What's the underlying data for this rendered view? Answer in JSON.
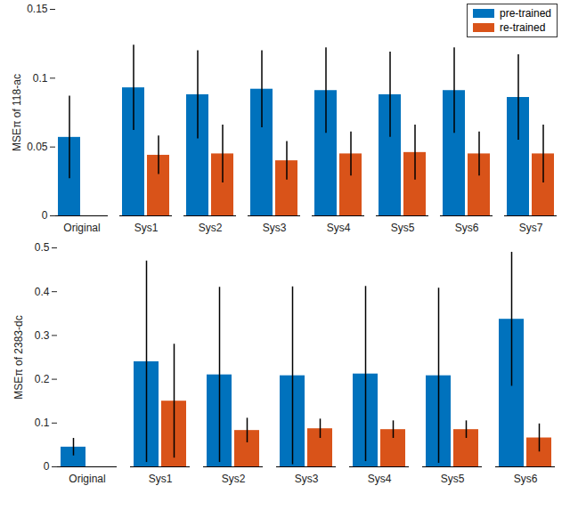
{
  "chart_data": [
    {
      "type": "bar",
      "y_label": "MSEπ of 118-ac",
      "categories": [
        "Original",
        "Sys1",
        "Sys2",
        "Sys3",
        "Sys4",
        "Sys5",
        "Sys6",
        "Sys7"
      ],
      "series": [
        {
          "name": "pre-trained",
          "color": "#0072BD",
          "values": [
            0.057,
            0.093,
            0.088,
            0.092,
            0.091,
            0.088,
            0.091,
            0.086
          ],
          "errors": [
            0.03,
            0.031,
            0.032,
            0.028,
            0.031,
            0.031,
            0.031,
            0.031
          ]
        },
        {
          "name": "re-trained",
          "color": "#D95319",
          "values": [
            null,
            0.044,
            0.045,
            0.04,
            0.045,
            0.046,
            0.045,
            0.045
          ],
          "errors": [
            null,
            0.014,
            0.021,
            0.014,
            0.016,
            0.02,
            0.016,
            0.021
          ]
        }
      ],
      "ylim": [
        0,
        0.15
      ],
      "yticks": [
        0,
        0.05,
        0.1,
        0.15
      ],
      "legend": "upper right"
    },
    {
      "type": "bar",
      "y_label": "MSEπ of 2383-dc",
      "categories": [
        "Original",
        "Sys1",
        "Sys2",
        "Sys3",
        "Sys4",
        "Sys5",
        "Sys6"
      ],
      "series": [
        {
          "name": "pre-trained",
          "color": "#0072BD",
          "values": [
            0.045,
            0.24,
            0.21,
            0.208,
            0.212,
            0.208,
            0.337
          ],
          "errors": [
            0.02,
            0.23,
            0.2,
            0.203,
            0.2,
            0.2,
            0.153
          ]
        },
        {
          "name": "re-trained",
          "color": "#D95319",
          "values": [
            null,
            0.15,
            0.083,
            0.087,
            0.085,
            0.085,
            0.066
          ],
          "errors": [
            null,
            0.13,
            0.028,
            0.022,
            0.02,
            0.02,
            0.032
          ]
        }
      ],
      "ylim": [
        0,
        0.5
      ],
      "yticks": [
        0,
        0.1,
        0.2,
        0.3,
        0.4,
        0.5
      ]
    }
  ]
}
